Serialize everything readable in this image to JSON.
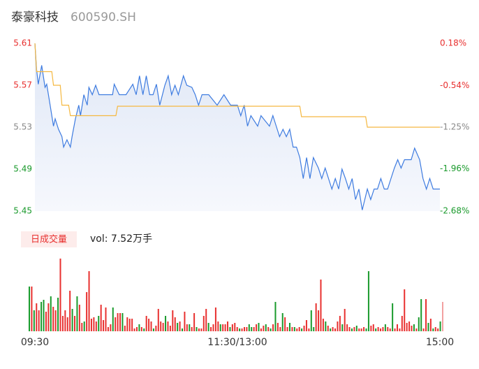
{
  "header": {
    "name": "泰豪科技",
    "code": "600590.SH"
  },
  "chart_data": [
    {
      "type": "line",
      "ylim": [
        5.45,
        5.61
      ],
      "yticks": [
        5.45,
        5.49,
        5.53,
        5.57,
        5.61
      ],
      "y2lim": [
        -2.68,
        0.18
      ],
      "y2ticks": [
        {
          "value": -2.68,
          "label": "-2.68%"
        },
        {
          "value": -1.96,
          "label": "-1.96%"
        },
        {
          "value": -1.25,
          "label": "-1.25%"
        },
        {
          "value": -0.54,
          "label": "-0.54%"
        },
        {
          "value": 0.18,
          "label": "0.18%"
        }
      ],
      "xlim": [
        0,
        240
      ],
      "xticks": [
        {
          "value": 0,
          "label": "09:30"
        },
        {
          "value": 120,
          "label": "11:30/13:00"
        },
        {
          "value": 240,
          "label": "15:00"
        }
      ],
      "up_color": "#e8302f",
      "flat_color": "#888888",
      "down_color": "#1a9a2c",
      "series": [
        {
          "color": "#3d7be0",
          "area": true,
          "x": [
            0,
            1,
            2,
            4,
            6,
            7,
            9,
            11,
            12,
            14,
            16,
            17,
            19,
            21,
            22,
            24,
            26,
            27,
            29,
            31,
            32,
            34,
            36,
            38,
            41,
            46,
            47,
            50,
            54,
            58,
            60,
            62,
            64,
            66,
            68,
            70,
            72,
            74,
            77,
            79,
            81,
            83,
            85,
            88,
            90,
            93,
            95,
            97,
            99,
            103,
            108,
            112,
            116,
            120,
            122,
            124,
            126,
            128,
            132,
            134,
            139,
            141,
            143,
            145,
            147,
            149,
            151,
            153,
            155,
            157,
            159,
            161,
            163,
            165,
            168,
            170,
            172,
            174,
            176,
            178,
            180,
            182,
            184,
            186,
            188,
            190,
            192,
            194,
            197,
            199,
            201,
            203,
            205,
            207,
            209,
            211,
            213,
            215,
            217,
            219,
            223,
            225,
            228,
            230,
            232,
            234,
            236,
            240
          ],
          "values": [
            5.61,
            5.585,
            5.571,
            5.589,
            5.568,
            5.571,
            5.551,
            5.531,
            5.538,
            5.528,
            5.521,
            5.511,
            5.518,
            5.511,
            5.521,
            5.538,
            5.551,
            5.541,
            5.561,
            5.551,
            5.568,
            5.561,
            5.57,
            5.561,
            5.561,
            5.561,
            5.571,
            5.561,
            5.561,
            5.571,
            5.561,
            5.579,
            5.561,
            5.579,
            5.561,
            5.561,
            5.571,
            5.551,
            5.57,
            5.579,
            5.561,
            5.57,
            5.561,
            5.579,
            5.57,
            5.568,
            5.561,
            5.551,
            5.561,
            5.561,
            5.551,
            5.561,
            5.551,
            5.551,
            5.541,
            5.551,
            5.531,
            5.541,
            5.531,
            5.541,
            5.531,
            5.541,
            5.531,
            5.521,
            5.528,
            5.521,
            5.528,
            5.511,
            5.511,
            5.501,
            5.481,
            5.501,
            5.481,
            5.501,
            5.491,
            5.481,
            5.491,
            5.481,
            5.471,
            5.481,
            5.471,
            5.49,
            5.481,
            5.471,
            5.481,
            5.461,
            5.471,
            5.451,
            5.471,
            5.461,
            5.471,
            5.471,
            5.481,
            5.471,
            5.471,
            5.481,
            5.491,
            5.499,
            5.491,
            5.499,
            5.499,
            5.51,
            5.499,
            5.481,
            5.471,
            5.481,
            5.471,
            5.471
          ]
        },
        {
          "color": "#f5b840",
          "x": [
            0,
            1,
            10,
            11,
            15,
            16,
            20,
            21,
            48,
            49,
            157,
            158,
            196,
            197,
            240
          ],
          "values": [
            5.61,
            5.583,
            5.583,
            5.57,
            5.57,
            5.551,
            5.551,
            5.541,
            5.541,
            5.55,
            5.55,
            5.54,
            5.54,
            5.53,
            5.53
          ]
        }
      ]
    },
    {
      "type": "bar",
      "label": "日成交量",
      "summary": "vol: 7.52万手",
      "ylim": [
        0,
        104
      ],
      "values": [
        64,
        64,
        30,
        40,
        30,
        42,
        45,
        28,
        40,
        50,
        35,
        30,
        48,
        104,
        22,
        30,
        20,
        58,
        32,
        22,
        50,
        38,
        12,
        14,
        56,
        86,
        18,
        20,
        14,
        22,
        38,
        16,
        34,
        6,
        10,
        34,
        20,
        26,
        26,
        26,
        8,
        20,
        18,
        18,
        4,
        6,
        10,
        6,
        4,
        22,
        18,
        14,
        4,
        8,
        32,
        14,
        12,
        22,
        14,
        8,
        30,
        20,
        12,
        14,
        4,
        28,
        10,
        10,
        6,
        26,
        6,
        4,
        4,
        22,
        32,
        12,
        6,
        10,
        34,
        14,
        10,
        10,
        10,
        14,
        6,
        10,
        12,
        6,
        4,
        4,
        6,
        6,
        10,
        6,
        6,
        10,
        12,
        4,
        8,
        10,
        6,
        4,
        10,
        42,
        12,
        6,
        26,
        20,
        6,
        12,
        6,
        6,
        4,
        6,
        4,
        8,
        16,
        4,
        30,
        6,
        40,
        30,
        74,
        18,
        14,
        8,
        4,
        6,
        4,
        14,
        22,
        10,
        32,
        10,
        6,
        4,
        6,
        8,
        4,
        4,
        6,
        4,
        86,
        8,
        10,
        4,
        6,
        4,
        6,
        10,
        6,
        4,
        40,
        4,
        10,
        4,
        22,
        60,
        12,
        14,
        8,
        10,
        4,
        20,
        46,
        4,
        46,
        12,
        18,
        4,
        6,
        4,
        14,
        42
      ],
      "colors": [
        "#1a9a2c",
        "#e8302f",
        "#1a9a2c",
        "#e8302f",
        "#e8302f",
        "#1a9a2c",
        "#1a9a2c",
        "#e8302f",
        "#e8302f",
        "#1a9a2c",
        "#e8302f",
        "#e8302f",
        "#1a9a2c",
        "#e8302f",
        "#e8302f",
        "#e8302f",
        "#e8302f",
        "#e8302f",
        "#1a9a2c",
        "#e8302f",
        "#1a9a2c",
        "#e8302f",
        "#e8302f",
        "#1a9a2c",
        "#e8302f",
        "#e8302f",
        "#e8302f",
        "#e8302f",
        "#e8302f",
        "#1a9a2c",
        "#e8302f",
        "#e8302f",
        "#e8302f",
        "#e8302f",
        "#e8302f",
        "#1a9a2c",
        "#e8302f",
        "#e8302f",
        "#e8302f",
        "#1a9a2c",
        "#e8302f",
        "#e8302f",
        "#e8302f",
        "#e8302f",
        "#e8302f",
        "#e8302f",
        "#1a9a2c",
        "#e8302f",
        "#1a9a2c",
        "#e8302f",
        "#e8302f",
        "#e8302f",
        "#1a9a2c",
        "#e8302f",
        "#e8302f",
        "#e8302f",
        "#e8302f",
        "#1a9a2c",
        "#e8302f",
        "#e8302f",
        "#e8302f",
        "#e8302f",
        "#1a9a2c",
        "#e8302f",
        "#1a9a2c",
        "#e8302f",
        "#e8302f",
        "#1a9a2c",
        "#e8302f",
        "#e8302f",
        "#1a9a2c",
        "#e8302f",
        "#e8302f",
        "#e8302f",
        "#e8302f",
        "#1a9a2c",
        "#e8302f",
        "#e8302f",
        "#e8302f",
        "#e8302f",
        "#1a9a2c",
        "#e8302f",
        "#e8302f",
        "#e8302f",
        "#1a9a2c",
        "#e8302f",
        "#e8302f",
        "#e8302f",
        "#1a9a2c",
        "#e8302f",
        "#e8302f",
        "#e8302f",
        "#1a9a2c",
        "#1a9a2c",
        "#e8302f",
        "#e8302f",
        "#1a9a2c",
        "#e8302f",
        "#e8302f",
        "#1a9a2c",
        "#e8302f",
        "#1a9a2c",
        "#e8302f",
        "#1a9a2c",
        "#e8302f",
        "#e8302f",
        "#1a9a2c",
        "#e8302f",
        "#e8302f",
        "#1a9a2c",
        "#e8302f",
        "#1a9a2c",
        "#e8302f",
        "#e8302f",
        "#1a9a2c",
        "#e8302f",
        "#e8302f",
        "#e8302f",
        "#1a9a2c",
        "#1a9a2c",
        "#e8302f",
        "#e8302f",
        "#e8302f",
        "#e8302f",
        "#1a9a2c",
        "#e8302f",
        "#1a9a2c",
        "#e8302f",
        "#e8302f",
        "#e8302f",
        "#e8302f",
        "#1a9a2c",
        "#e8302f",
        "#e8302f",
        "#e8302f",
        "#1a9a2c",
        "#e8302f",
        "#1a9a2c",
        "#e8302f",
        "#e8302f",
        "#e8302f",
        "#1a9a2c",
        "#1a9a2c",
        "#e8302f",
        "#e8302f",
        "#1a9a2c",
        "#e8302f",
        "#e8302f",
        "#e8302f",
        "#1a9a2c",
        "#e8302f",
        "#e8302f",
        "#1a9a2c",
        "#e8302f",
        "#e8302f",
        "#e8302f",
        "#e8302f",
        "#e8302f",
        "#e8302f",
        "#e8302f",
        "#e8302f",
        "#1a9a2c",
        "#e8302f",
        "#1a9a2c",
        "#1a9a2c",
        "#e8302f",
        "#e8302f",
        "#1a9a2c",
        "#e8302f",
        "#1a9a2c",
        "#e8302f",
        "#e8302f",
        "#1a9a2c",
        "#f2a0a0"
      ]
    }
  ]
}
